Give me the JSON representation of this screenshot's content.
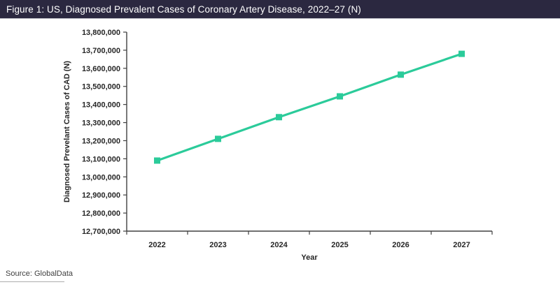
{
  "header": {
    "title": "Figure 1: US, Diagnosed Prevalent Cases of Coronary Artery Disease, 2022–27 (N)",
    "bg_color": "#2B2840",
    "text_color": "#FFFFFF"
  },
  "chart_data": {
    "type": "line",
    "title": "Figure 1: US, Diagnosed Prevalent Cases of Coronary Artery Disease, 2022–27 (N)",
    "xlabel": "Year",
    "ylabel": "Diagnosed Prevelant Cases of CAD (N)",
    "categories": [
      "2022",
      "2023",
      "2024",
      "2025",
      "2026",
      "2027"
    ],
    "series": [
      {
        "name": "Diagnosed Prevalent Cases of CAD",
        "values": [
          13090000,
          13210000,
          13330000,
          13445000,
          13565000,
          13680000
        ],
        "color": "#2BCB9A",
        "marker": "square"
      }
    ],
    "ylim": [
      12700000,
      13800000
    ],
    "ytick_step": 100000,
    "ytick_format": "thousands-comma",
    "grid": false,
    "legend": "none",
    "axis_color": "#404040"
  },
  "footer": {
    "source": "Source: GlobalData"
  }
}
